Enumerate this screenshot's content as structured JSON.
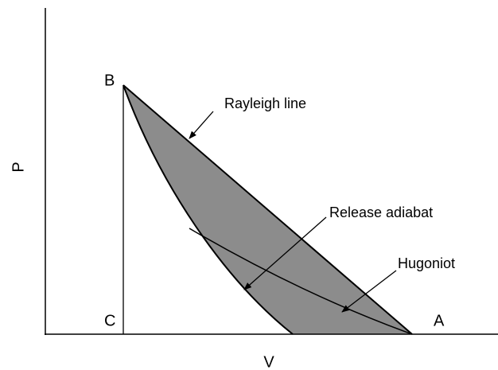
{
  "diagram": {
    "axes": {
      "y_label": "P",
      "x_label": "V"
    },
    "points": {
      "a": "A",
      "b": "B",
      "c": "C"
    },
    "annotations": [
      "Rayleigh line",
      "Release adiabat",
      "Hugoniot"
    ]
  }
}
